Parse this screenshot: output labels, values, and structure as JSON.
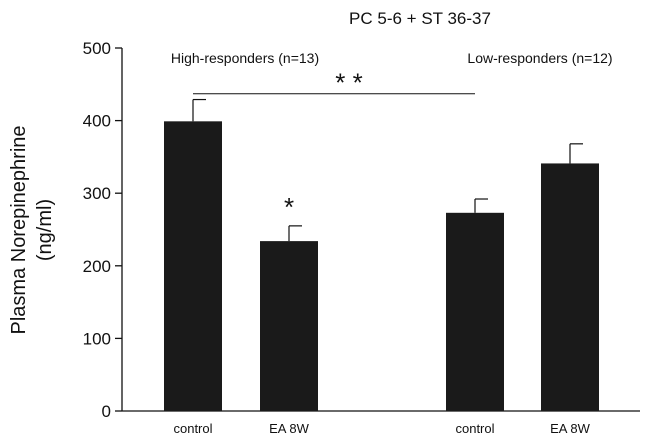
{
  "chart_data": {
    "type": "bar",
    "title": "PC 5-6 + ST 36-37",
    "ylabel_line1": "Plasma Norepinephrine",
    "ylabel_line2": "(ng/ml)",
    "xlabel": "",
    "ylim": [
      0,
      500
    ],
    "yticks": [
      0,
      100,
      200,
      300,
      400,
      500
    ],
    "grid": false,
    "bar_color": "#1a1a1a",
    "groups": [
      {
        "name": "High-responders (n=13)",
        "bars": [
          {
            "label": "control",
            "value": 399,
            "error": 30
          },
          {
            "label": "EA 8W",
            "value": 234,
            "error": 21,
            "marker": "*"
          }
        ]
      },
      {
        "name": "Low-responders (n=12)",
        "bars": [
          {
            "label": "control",
            "value": 273,
            "error": 19
          },
          {
            "label": "EA 8W",
            "value": 341,
            "error": 27
          }
        ]
      }
    ],
    "comparison": {
      "label": "* *",
      "value": 437
    }
  }
}
